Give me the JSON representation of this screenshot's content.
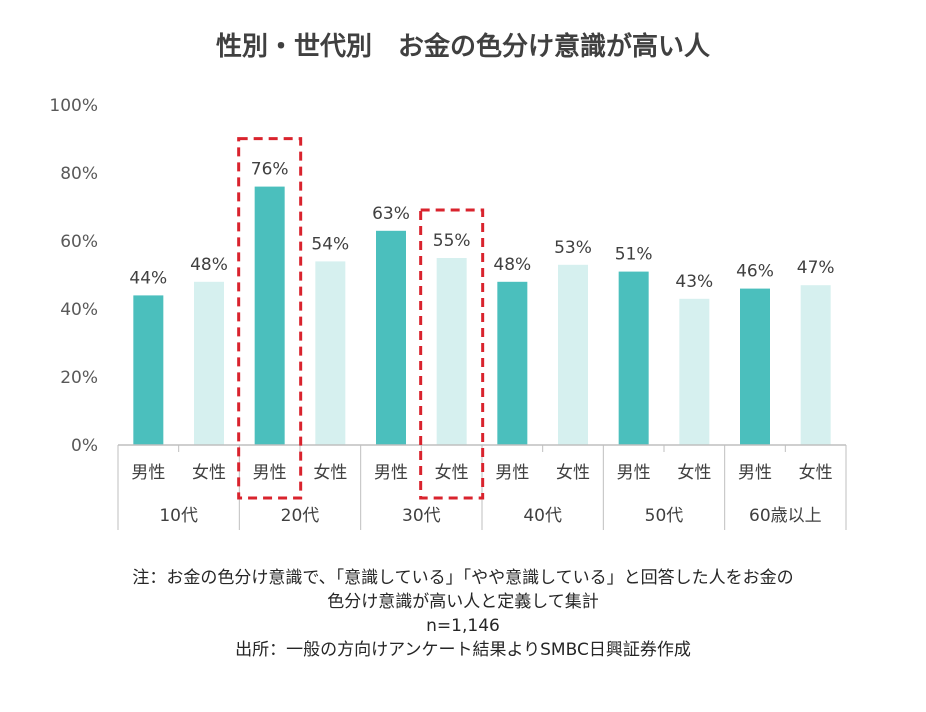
{
  "title": "性別・世代別　お金の色分け意識が高い人",
  "chart_data": {
    "type": "bar",
    "title": "性別・世代別　お金の色分け意識が高い人",
    "y_ticks": [
      "0%",
      "20%",
      "40%",
      "60%",
      "80%",
      "100%"
    ],
    "ylim": [
      0,
      100
    ],
    "groups": [
      {
        "label": "10代",
        "bars": [
          {
            "label": "男性",
            "value": 44,
            "value_label": "44%"
          },
          {
            "label": "女性",
            "value": 48,
            "value_label": "48%"
          }
        ]
      },
      {
        "label": "20代",
        "bars": [
          {
            "label": "男性",
            "value": 76,
            "value_label": "76%",
            "highlight": true
          },
          {
            "label": "女性",
            "value": 54,
            "value_label": "54%"
          }
        ]
      },
      {
        "label": "30代",
        "bars": [
          {
            "label": "男性",
            "value": 63,
            "value_label": "63%"
          },
          {
            "label": "女性",
            "value": 55,
            "value_label": "55%",
            "highlight": true
          }
        ]
      },
      {
        "label": "40代",
        "bars": [
          {
            "label": "男性",
            "value": 48,
            "value_label": "48%"
          },
          {
            "label": "女性",
            "value": 53,
            "value_label": "53%"
          }
        ]
      },
      {
        "label": "50代",
        "bars": [
          {
            "label": "男性",
            "value": 51,
            "value_label": "51%"
          },
          {
            "label": "女性",
            "value": 43,
            "value_label": "43%"
          }
        ]
      },
      {
        "label": "60歳以上",
        "bars": [
          {
            "label": "男性",
            "value": 46,
            "value_label": "46%"
          },
          {
            "label": "女性",
            "value": 47,
            "value_label": "47%"
          }
        ]
      }
    ],
    "colors": {
      "male": "#4BBFBD",
      "female": "#D6F0EF",
      "highlight": "#D9232D",
      "axis": "#BFBFBF"
    }
  },
  "notes": [
    "注：お金の色分け意識で、「意識している」「やや意識している」と回答した人をお金の",
    "色分け意識が高い人と定義して集計",
    "n=1,146",
    "出所：一般の方向けアンケート結果よりSMBC日興証券作成"
  ]
}
